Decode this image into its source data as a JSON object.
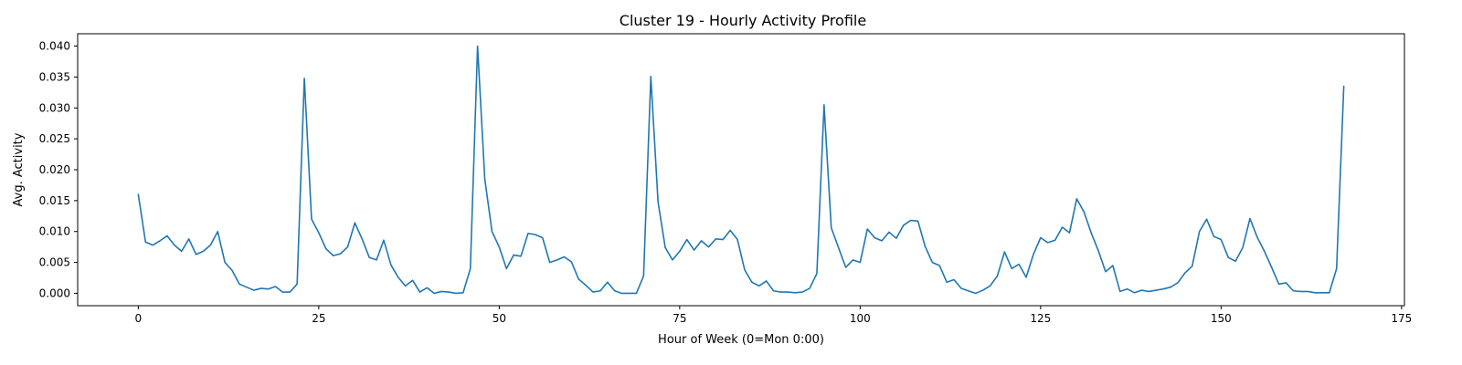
{
  "chart_data": {
    "type": "line",
    "title": "Cluster 19 - Hourly Activity Profile",
    "xlabel": "Hour of Week (0=Mon 0:00)",
    "ylabel": "Avg. Activity",
    "xlim": [
      -8.4,
      175.4
    ],
    "ylim": [
      -0.002,
      0.042
    ],
    "xticks": [
      0,
      25,
      50,
      75,
      100,
      125,
      150,
      175
    ],
    "xtick_labels": [
      "0",
      "25",
      "50",
      "75",
      "100",
      "125",
      "150",
      "175"
    ],
    "yticks": [
      0.0,
      0.005,
      0.01,
      0.015,
      0.02,
      0.025,
      0.03,
      0.035,
      0.04
    ],
    "ytick_labels": [
      "0.000",
      "0.005",
      "0.010",
      "0.015",
      "0.020",
      "0.025",
      "0.030",
      "0.035",
      "0.040"
    ],
    "grid": false,
    "legend": "none",
    "series": [
      {
        "color": "#1f77b4",
        "values": [
          0.016,
          0.0083,
          0.0078,
          0.0085,
          0.0093,
          0.0078,
          0.0068,
          0.0088,
          0.0063,
          0.0068,
          0.0078,
          0.01,
          0.005,
          0.0037,
          0.0015,
          0.001,
          0.0005,
          0.0008,
          0.0007,
          0.0011,
          0.0002,
          0.0002,
          0.0015,
          0.0348,
          0.012,
          0.0098,
          0.0072,
          0.0061,
          0.0064,
          0.0075,
          0.0114,
          0.0088,
          0.0058,
          0.0054,
          0.0086,
          0.0046,
          0.0026,
          0.0012,
          0.0021,
          0.0002,
          0.0009,
          0.0,
          0.0003,
          0.0002,
          0.0,
          0.0001,
          0.004,
          0.04,
          0.0185,
          0.01,
          0.0075,
          0.004,
          0.0062,
          0.006,
          0.0097,
          0.0095,
          0.009,
          0.005,
          0.0054,
          0.0059,
          0.0051,
          0.0023,
          0.0013,
          0.0002,
          0.0004,
          0.0018,
          0.0004,
          0.0,
          0.0,
          0.0,
          0.0028,
          0.0351,
          0.0148,
          0.0074,
          0.0054,
          0.0068,
          0.0087,
          0.007,
          0.0085,
          0.0075,
          0.0088,
          0.0087,
          0.0102,
          0.0087,
          0.0038,
          0.0018,
          0.0012,
          0.002,
          0.0004,
          0.0002,
          0.0002,
          0.0001,
          0.0002,
          0.0008,
          0.0032,
          0.0305,
          0.0106,
          0.0074,
          0.0042,
          0.0054,
          0.005,
          0.0104,
          0.009,
          0.0085,
          0.0099,
          0.0089,
          0.011,
          0.0118,
          0.0117,
          0.0076,
          0.005,
          0.0045,
          0.0018,
          0.0022,
          0.0008,
          0.0004,
          0.0,
          0.0005,
          0.0012,
          0.0028,
          0.0067,
          0.004,
          0.0047,
          0.0026,
          0.0063,
          0.009,
          0.0082,
          0.0086,
          0.0107,
          0.0098,
          0.0153,
          0.0132,
          0.0098,
          0.0069,
          0.0035,
          0.0045,
          0.0003,
          0.0007,
          0.0001,
          0.0005,
          0.0003,
          0.0005,
          0.0007,
          0.001,
          0.0017,
          0.0033,
          0.0044,
          0.01,
          0.012,
          0.0092,
          0.0087,
          0.0058,
          0.0052,
          0.0074,
          0.0121,
          0.0091,
          0.0068,
          0.0042,
          0.0015,
          0.0017,
          0.0004,
          0.0003,
          0.0003,
          0.0001,
          0.0001,
          0.0001,
          0.004,
          0.0335
        ]
      }
    ]
  }
}
